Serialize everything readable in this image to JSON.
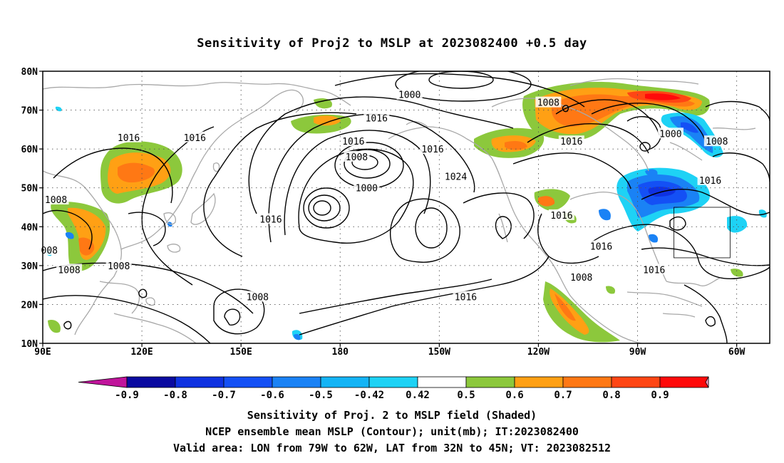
{
  "title": "Sensitivity of Proj2 to MSLP at 2023082400 +0.5 day",
  "axes": {
    "lat_labels": [
      "80N",
      "70N",
      "60N",
      "50N",
      "40N",
      "30N",
      "20N",
      "10N"
    ],
    "lon_labels": [
      "90E",
      "120E",
      "150E",
      "180",
      "150W",
      "120W",
      "90W",
      "60W"
    ]
  },
  "contour_labels": [
    {
      "text": "1000",
      "lon": -159,
      "lat": 74
    },
    {
      "text": "1008",
      "lon": -117,
      "lat": 72
    },
    {
      "text": "1016",
      "lon": -169,
      "lat": 68
    },
    {
      "text": "1016",
      "lon": 116,
      "lat": 63
    },
    {
      "text": "1016",
      "lon": 136,
      "lat": 63
    },
    {
      "text": "1016",
      "lon": -176,
      "lat": 62
    },
    {
      "text": "1008",
      "lon": -175,
      "lat": 58
    },
    {
      "text": "1016",
      "lon": -152,
      "lat": 60
    },
    {
      "text": "1016",
      "lon": -110,
      "lat": 62
    },
    {
      "text": "1000",
      "lon": -80,
      "lat": 64
    },
    {
      "text": "1008",
      "lon": -66,
      "lat": 62
    },
    {
      "text": "1024",
      "lon": -145,
      "lat": 53
    },
    {
      "text": "1016",
      "lon": -68,
      "lat": 52
    },
    {
      "text": "1000",
      "lon": -172,
      "lat": 50
    },
    {
      "text": "1008",
      "lon": 94,
      "lat": 47
    },
    {
      "text": "1016",
      "lon": 159,
      "lat": 42
    },
    {
      "text": "1016",
      "lon": -113,
      "lat": 43
    },
    {
      "text": "008",
      "lon": 92,
      "lat": 34
    },
    {
      "text": "1016",
      "lon": -101,
      "lat": 35
    },
    {
      "text": "1008",
      "lon": 113,
      "lat": 30
    },
    {
      "text": "1008",
      "lon": 98,
      "lat": 29
    },
    {
      "text": "1016",
      "lon": -85,
      "lat": 29
    },
    {
      "text": "1008",
      "lon": -107,
      "lat": 27
    },
    {
      "text": "1008",
      "lon": 155,
      "lat": 22
    },
    {
      "text": "1016",
      "lon": -142,
      "lat": 22
    }
  ],
  "valid_area": {
    "lon": [
      -79,
      -62
    ],
    "lat": [
      32,
      45
    ]
  },
  "colorbar": {
    "labels": [
      "-0.9",
      "-0.8",
      "-0.7",
      "-0.6",
      "-0.5",
      "-0.42",
      "0.42",
      "0.5",
      "0.6",
      "0.7",
      "0.8",
      "0.9"
    ],
    "colors": [
      "#c0149b",
      "#0a0aa0",
      "#0f32e1",
      "#1450f5",
      "#1a82f5",
      "#14b4f5",
      "#1ed2f5",
      "#ffffff",
      "#8cc83c",
      "#ffa014",
      "#ff7814",
      "#ff4614",
      "#ff0a0a",
      "#f5a0c8"
    ]
  },
  "captions": [
    "Sensitivity of Proj. 2 to MSLP field (Shaded)",
    "NCEP ensemble mean MSLP (Contour); unit(mb); IT:2023082400",
    "Valid area: LON from 79W to 62W, LAT from 32N to 45N; VT: 2023082512"
  ]
}
